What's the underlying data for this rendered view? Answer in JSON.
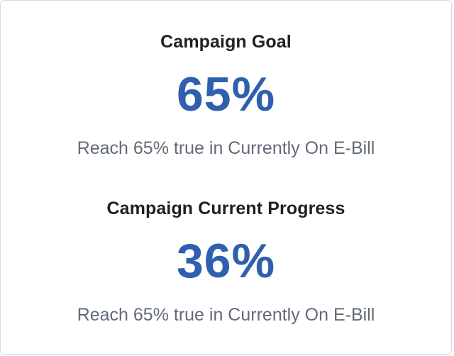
{
  "goal": {
    "heading": "Campaign Goal",
    "value": "65%",
    "description": "Reach 65% true in Currently On E-Bill"
  },
  "progress": {
    "heading": "Campaign Current Progress",
    "value": "36%",
    "description": "Reach 65% true in Currently On E-Bill"
  },
  "colors": {
    "accent": "#2f5fae",
    "heading": "#1e2025",
    "muted": "#626a77",
    "border": "#d6d9de"
  }
}
